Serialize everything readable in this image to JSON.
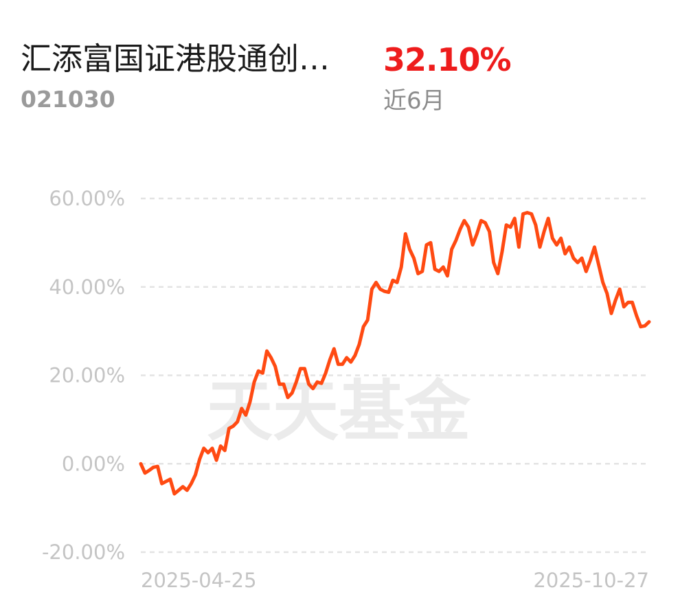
{
  "header": {
    "fund_name": "汇添富国证港股通创…",
    "fund_code": "021030",
    "return_value": "32.10%",
    "return_period": "近6月"
  },
  "watermark": "天天基金",
  "colors": {
    "line": "#ff4a12",
    "return_positive": "#ee1c1c",
    "grid": "#e3e3e3",
    "tick_text": "#c4c4c4"
  },
  "chart_data": {
    "type": "line",
    "title": "",
    "xlabel": "",
    "ylabel": "",
    "ylim": [
      -20,
      60
    ],
    "yticks": [
      60,
      40,
      20,
      0,
      -20
    ],
    "ytick_labels": [
      "60.00%",
      "40.00%",
      "20.00%",
      "0.00%",
      "-20.00%"
    ],
    "x_start_label": "2025-04-25",
    "x_end_label": "2025-10-27",
    "grid": "horizontal dashed",
    "series": [
      {
        "values": [
          0.0,
          -2.1,
          -1.5,
          -0.8,
          -0.6,
          -4.5,
          -4.0,
          -3.5,
          -6.8,
          -6.0,
          -5.2,
          -6.0,
          -4.5,
          -2.5,
          1.0,
          3.5,
          2.5,
          3.5,
          0.8,
          4.0,
          3.0,
          8.0,
          8.5,
          9.5,
          12.5,
          11.0,
          14.0,
          18.5,
          21.0,
          20.5,
          25.5,
          24.0,
          22.0,
          18.0,
          18.0,
          15.0,
          16.0,
          18.5,
          21.5,
          21.5,
          18.0,
          17.0,
          18.5,
          18.2,
          20.5,
          23.5,
          26.0,
          22.5,
          22.5,
          24.0,
          23.0,
          24.5,
          27.0,
          31.0,
          32.5,
          39.5,
          41.0,
          39.5,
          39.0,
          38.8,
          41.5,
          41.0,
          44.5,
          52.0,
          48.5,
          46.5,
          43.0,
          43.5,
          49.5,
          50.0,
          44.0,
          43.5,
          44.5,
          42.5,
          48.5,
          50.5,
          53.0,
          55.0,
          53.5,
          49.5,
          52.0,
          55.0,
          54.5,
          52.5,
          45.5,
          43.0,
          48.0,
          54.0,
          53.5,
          55.5,
          49.0,
          56.5,
          56.8,
          56.5,
          54.0,
          49.0,
          52.5,
          55.5,
          51.0,
          49.5,
          51.0,
          47.5,
          49.0,
          46.5,
          45.5,
          46.5,
          43.5,
          46.0,
          49.0,
          45.0,
          41.0,
          38.5,
          34.0,
          37.0,
          39.5,
          35.5,
          36.5,
          36.5,
          33.5,
          31.0,
          31.2,
          32.1
        ]
      }
    ]
  }
}
